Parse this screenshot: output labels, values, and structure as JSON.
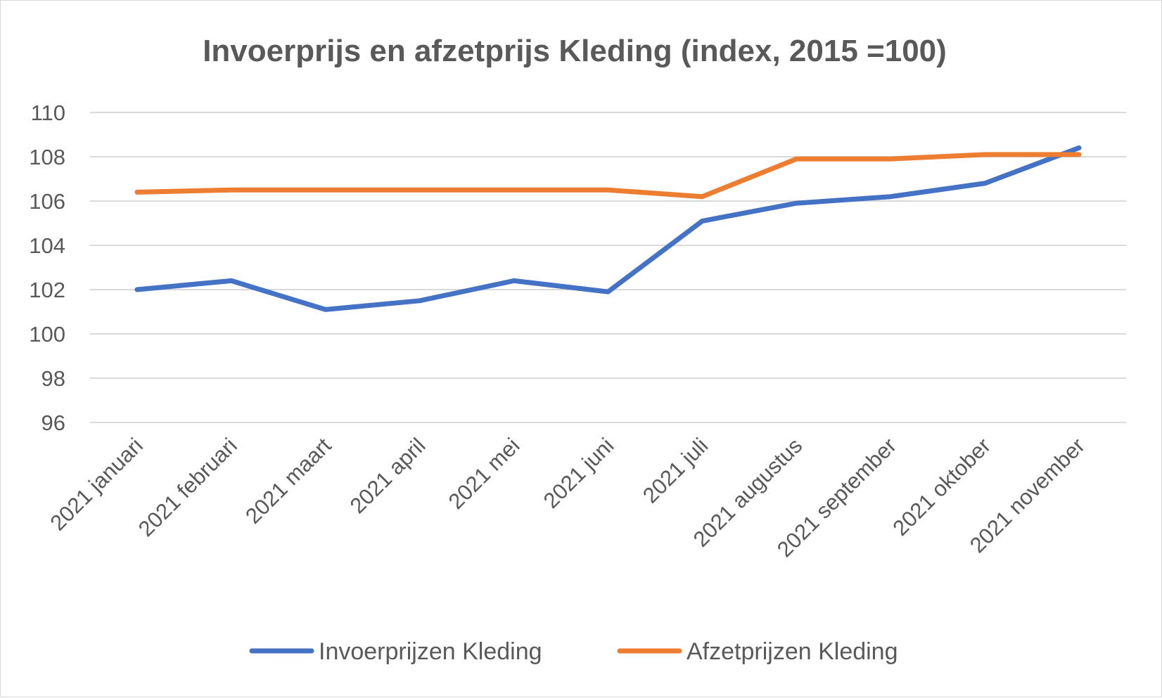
{
  "chart_data": {
    "type": "line",
    "title": "Invoerprijs en afzetprijs Kleding (index, 2015 =100)",
    "xlabel": "",
    "ylabel": "",
    "categories": [
      "2021 januari",
      "2021 februari",
      "2021 maart",
      "2021 april",
      "2021 mei",
      "2021 juni",
      "2021 juli",
      "2021 augustus",
      "2021 september",
      "2021 oktober",
      "2021 november"
    ],
    "ylim": [
      96,
      110
    ],
    "yticks": [
      96,
      98,
      100,
      102,
      104,
      106,
      108,
      110
    ],
    "grid": true,
    "legend_position": "bottom",
    "series": [
      {
        "name": "Invoerprijzen Kleding",
        "color": "#4472c4",
        "values": [
          102.0,
          102.4,
          101.1,
          101.5,
          102.4,
          101.9,
          105.1,
          105.9,
          106.2,
          106.8,
          108.4
        ]
      },
      {
        "name": "Afzetprijzen Kleding",
        "color": "#ed7d31",
        "values": [
          106.4,
          106.5,
          106.5,
          106.5,
          106.5,
          106.5,
          106.2,
          107.9,
          107.9,
          108.1,
          108.1
        ]
      }
    ]
  }
}
